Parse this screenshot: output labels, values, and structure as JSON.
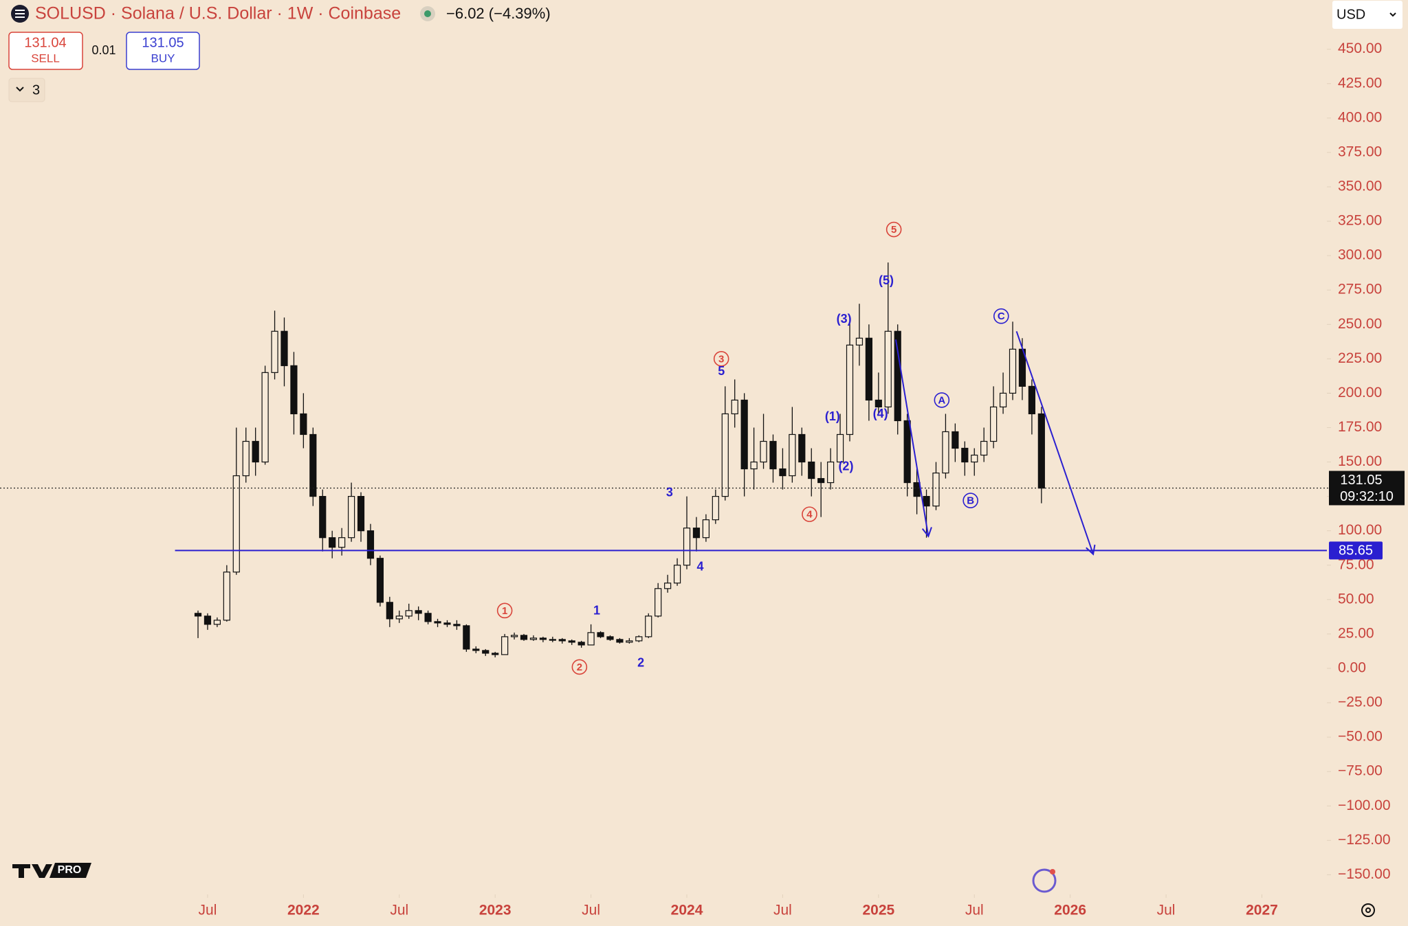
{
  "header": {
    "symbol": "SOLUSD · Solana / U.S. Dollar · 1W · Coinbase",
    "change": "−6.02 (−4.39%)",
    "sell_price": "131.04",
    "sell_label": "SELL",
    "spread": "0.01",
    "buy_price": "131.05",
    "buy_label": "BUY",
    "indicators_count": "3",
    "currency": "USD",
    "brand": "PRO"
  },
  "chart_data": {
    "type": "candlestick",
    "x": [
      2021.45,
      2021.5,
      2021.55,
      2021.6,
      2021.65,
      2021.7,
      2021.75,
      2021.8,
      2021.85,
      2021.9,
      2021.95,
      2022.0,
      2022.05,
      2022.1,
      2022.15,
      2022.2,
      2022.25,
      2022.3,
      2022.35,
      2022.4,
      2022.45,
      2022.5,
      2022.55,
      2022.6,
      2022.65,
      2022.7,
      2022.75,
      2022.8,
      2022.85,
      2022.9,
      2022.95,
      2023.0,
      2023.05,
      2023.1,
      2023.15,
      2023.2,
      2023.25,
      2023.3,
      2023.35,
      2023.4,
      2023.45,
      2023.5,
      2023.55,
      2023.6,
      2023.65,
      2023.7,
      2023.75,
      2023.8,
      2023.85,
      2023.9,
      2023.95,
      2024.0,
      2024.05,
      2024.1,
      2024.15,
      2024.2,
      2024.25,
      2024.3,
      2024.35,
      2024.4,
      2024.45,
      2024.5,
      2024.55,
      2024.6,
      2024.65,
      2024.7,
      2024.75,
      2024.8,
      2024.85,
      2024.9,
      2024.95,
      2025.0,
      2025.05,
      2025.1,
      2025.15,
      2025.2,
      2025.25,
      2025.3,
      2025.35,
      2025.4,
      2025.45,
      2025.5,
      2025.55,
      2025.6,
      2025.65,
      2025.7,
      2025.75,
      2025.8,
      2025.85
    ],
    "open": [
      40,
      38,
      32,
      35,
      70,
      140,
      165,
      150,
      215,
      245,
      220,
      185,
      170,
      125,
      95,
      88,
      95,
      125,
      100,
      80,
      48,
      36,
      38,
      42,
      40,
      34,
      33,
      32,
      31,
      14,
      13,
      11,
      10,
      23,
      24,
      21,
      22,
      21,
      21,
      20,
      19,
      17,
      26,
      23,
      21,
      19,
      20,
      23,
      38,
      58,
      62,
      75,
      102,
      95,
      108,
      125,
      185,
      195,
      145,
      150,
      165,
      145,
      140,
      170,
      150,
      138,
      135,
      150,
      170,
      235,
      240,
      195,
      190,
      245,
      180,
      135,
      125,
      118,
      142,
      172,
      160,
      150,
      155,
      165,
      190,
      200,
      232,
      205,
      185
    ],
    "high": [
      42,
      40,
      37,
      75,
      175,
      175,
      175,
      220,
      260,
      255,
      230,
      200,
      175,
      130,
      100,
      102,
      135,
      128,
      105,
      82,
      52,
      42,
      47,
      45,
      42,
      36,
      35,
      35,
      32,
      16,
      14,
      12,
      25,
      26,
      25,
      24,
      23,
      23,
      22,
      21,
      20,
      32,
      27,
      24,
      22,
      22,
      24,
      40,
      62,
      68,
      80,
      125,
      110,
      112,
      130,
      205,
      210,
      200,
      175,
      185,
      170,
      160,
      190,
      175,
      160,
      150,
      160,
      185,
      255,
      265,
      250,
      215,
      295,
      250,
      185,
      145,
      130,
      150,
      185,
      178,
      165,
      160,
      175,
      205,
      215,
      252,
      240,
      210,
      190
    ],
    "low": [
      22,
      28,
      30,
      34,
      68,
      135,
      140,
      148,
      210,
      205,
      170,
      160,
      118,
      85,
      80,
      82,
      92,
      92,
      75,
      45,
      30,
      33,
      36,
      35,
      32,
      30,
      30,
      28,
      12,
      11,
      9,
      8,
      10,
      21,
      20,
      20,
      19,
      19,
      18,
      17,
      15,
      17,
      22,
      20,
      18,
      18,
      19,
      22,
      37,
      55,
      60,
      72,
      85,
      92,
      105,
      122,
      175,
      125,
      130,
      145,
      135,
      130,
      135,
      140,
      125,
      110,
      130,
      145,
      165,
      220,
      180,
      185,
      185,
      170,
      125,
      112,
      95,
      115,
      138,
      150,
      140,
      140,
      150,
      160,
      185,
      195,
      195,
      170,
      120
    ],
    "close": [
      38,
      32,
      35,
      70,
      140,
      165,
      150,
      215,
      245,
      220,
      185,
      170,
      125,
      95,
      88,
      95,
      125,
      100,
      80,
      48,
      36,
      38,
      42,
      40,
      34,
      33,
      32,
      31,
      14,
      13,
      11,
      10,
      23,
      24,
      21,
      22,
      21,
      21,
      20,
      19,
      17,
      26,
      23,
      21,
      19,
      20,
      23,
      38,
      58,
      62,
      75,
      102,
      95,
      108,
      125,
      185,
      195,
      145,
      150,
      165,
      145,
      140,
      170,
      150,
      138,
      135,
      150,
      170,
      235,
      240,
      195,
      190,
      245,
      180,
      135,
      125,
      118,
      142,
      172,
      160,
      150,
      155,
      165,
      190,
      200,
      232,
      205,
      185,
      131
    ],
    "up_color": "#f7ead8",
    "down_color": "#111111",
    "xlim": [
      2020.417,
      2027.339
    ],
    "xticks": [
      {
        "value": 2021.5,
        "label": "Jul"
      },
      2022,
      {
        "value": 2022.5,
        "label": "Jul"
      },
      2023,
      {
        "value": 2023.5,
        "label": "Jul"
      },
      2024,
      {
        "value": 2024.5,
        "label": "Jul"
      },
      2025,
      {
        "value": 2025.5,
        "label": "Jul"
      },
      2026,
      {
        "value": 2026.5,
        "label": "Jul"
      },
      2027
    ],
    "ylim": [
      -164.3,
      485.8
    ],
    "yticks": [
      {
        "value": 450,
        "label": "450.00"
      },
      {
        "value": 425,
        "label": "425.00"
      },
      {
        "value": 400,
        "label": "400.00"
      },
      {
        "value": 375,
        "label": "375.00"
      },
      {
        "value": 350,
        "label": "350.00"
      },
      {
        "value": 325,
        "label": "325.00"
      },
      {
        "value": 300,
        "label": "300.00"
      },
      {
        "value": 275,
        "label": "275.00"
      },
      {
        "value": 250,
        "label": "250.00"
      },
      {
        "value": 225,
        "label": "225.00"
      },
      {
        "value": 200,
        "label": "200.00"
      },
      {
        "value": 175,
        "label": "175.00"
      },
      {
        "value": 150,
        "label": "150.00"
      },
      {
        "value": 125,
        "label": "125.00"
      },
      {
        "value": 100,
        "label": "100.00"
      },
      {
        "value": 75,
        "label": "75.00"
      },
      {
        "value": 50,
        "label": "50.00"
      },
      {
        "value": 25,
        "label": "25.00"
      },
      {
        "value": 0,
        "label": "0.00"
      },
      {
        "value": -25,
        "label": "−25.00"
      },
      {
        "value": -50,
        "label": "−50.00"
      },
      {
        "value": -75,
        "label": "−75.00"
      },
      {
        "value": -100,
        "label": "−100.00"
      },
      {
        "value": -125,
        "label": "−125.00"
      },
      {
        "value": -150,
        "label": "−150.00"
      }
    ],
    "current_price": {
      "value": 131.05,
      "label": "131.05",
      "countdown": "09:32:10"
    },
    "hline": {
      "value": 85.65,
      "label": "85.65",
      "x_start": 2021.33,
      "color": "#2a1fd0"
    },
    "arrows": [
      {
        "x": [
          2025.09,
          2025.26
        ],
        "y": [
          239,
          96
        ],
        "color": "#2a1fd0"
      },
      {
        "x": [
          2025.72,
          2026.12
        ],
        "y": [
          245,
          83
        ],
        "color": "#2a1fd0"
      }
    ],
    "annotations": [
      {
        "text": "1",
        "x": 2023.05,
        "y": 42,
        "color": "#d9443a",
        "circled": true
      },
      {
        "text": "2",
        "x": 2023.44,
        "y": 1,
        "color": "#d9443a",
        "circled": true
      },
      {
        "text": "3",
        "x": 2024.18,
        "y": 225,
        "color": "#d9443a",
        "circled": true
      },
      {
        "text": "4",
        "x": 2024.64,
        "y": 112,
        "color": "#d9443a",
        "circled": true
      },
      {
        "text": "5",
        "x": 2025.08,
        "y": 319,
        "color": "#d9443a",
        "circled": true
      },
      {
        "text": "1",
        "x": 2023.53,
        "y": 42,
        "color": "#2a1fd0",
        "circled": false
      },
      {
        "text": "2",
        "x": 2023.76,
        "y": 4,
        "color": "#2a1fd0",
        "circled": false
      },
      {
        "text": "3",
        "x": 2023.91,
        "y": 128,
        "color": "#2a1fd0",
        "circled": false
      },
      {
        "text": "4",
        "x": 2024.07,
        "y": 74,
        "color": "#2a1fd0",
        "circled": false
      },
      {
        "text": "5",
        "x": 2024.18,
        "y": 216,
        "color": "#2a1fd0",
        "circled": false
      },
      {
        "text": "(1)",
        "x": 2024.76,
        "y": 183,
        "color": "#2a1fd0",
        "circled": false
      },
      {
        "text": "(2)",
        "x": 2024.83,
        "y": 147,
        "color": "#2a1fd0",
        "circled": false
      },
      {
        "text": "(3)",
        "x": 2024.82,
        "y": 254,
        "color": "#2a1fd0",
        "circled": false
      },
      {
        "text": "(4)",
        "x": 2025.01,
        "y": 185,
        "color": "#2a1fd0",
        "circled": false
      },
      {
        "text": "(5)",
        "x": 2025.04,
        "y": 282,
        "color": "#2a1fd0",
        "circled": false
      },
      {
        "text": "A",
        "x": 2025.33,
        "y": 195,
        "color": "#2a1fd0",
        "circled": true
      },
      {
        "text": "B",
        "x": 2025.48,
        "y": 122,
        "color": "#2a1fd0",
        "circled": true
      },
      {
        "text": "C",
        "x": 2025.64,
        "y": 256,
        "color": "#2a1fd0",
        "circled": true
      }
    ]
  }
}
